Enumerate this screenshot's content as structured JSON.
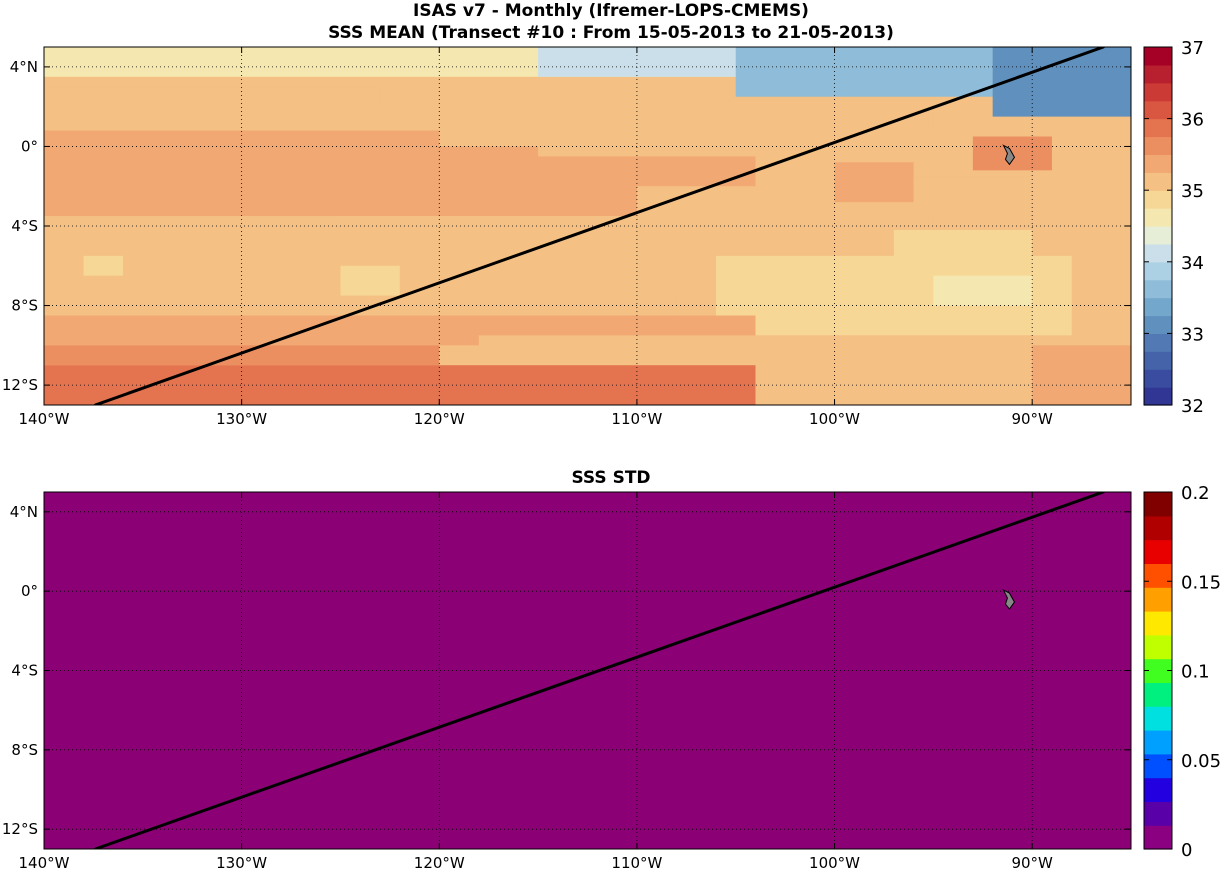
{
  "titles": {
    "line1": "ISAS v7 - Monthly (Ifremer-LOPS-CMEMS)",
    "line2": "SSS MEAN (Transect #10 : From 15-05-2013 to 21-05-2013)",
    "std": "SSS STD"
  },
  "axes": {
    "lon_ticks": [
      {
        "value": -140,
        "label": "140°W"
      },
      {
        "value": -130,
        "label": "130°W"
      },
      {
        "value": -120,
        "label": "120°W"
      },
      {
        "value": -110,
        "label": "110°W"
      },
      {
        "value": -100,
        "label": "100°W"
      },
      {
        "value": -90,
        "label": "90°W"
      }
    ],
    "lat_ticks": [
      {
        "value": 4,
        "label": "4°N"
      },
      {
        "value": 0,
        "label": "0°"
      },
      {
        "value": -4,
        "label": "4°S"
      },
      {
        "value": -8,
        "label": "8°S"
      },
      {
        "value": -12,
        "label": "12°S"
      }
    ],
    "lon_range": [
      -140,
      -85
    ],
    "lat_range": [
      -13,
      5
    ]
  },
  "transect": {
    "from": {
      "lon": -137.4,
      "lat": -13
    },
    "to": {
      "lon": -86.4,
      "lat": 5
    },
    "color": "#000000"
  },
  "island": {
    "name": "galapagos",
    "lon": -91.2,
    "lat": -0.5,
    "color": "#888888"
  },
  "mean_colorbar": {
    "min": 32,
    "max": 37,
    "tick_labels": [
      "37",
      "36",
      "35",
      "34",
      "33",
      "32"
    ],
    "colors": [
      "#313695",
      "#3a4c9f",
      "#4563a9",
      "#5279b3",
      "#6090bd",
      "#74a7cc",
      "#8fbcd9",
      "#acd0e4",
      "#cadfea",
      "#e6eed8",
      "#f5e7b0",
      "#f6d796",
      "#f4c083",
      "#f1a872",
      "#ec8f60",
      "#e4734f",
      "#d95741",
      "#cc3a36",
      "#b8202f",
      "#a50026"
    ]
  },
  "std_colorbar": {
    "min": 0,
    "max": 0.2,
    "tick_labels": [
      "0.2",
      "0.15",
      "0.1",
      "0.05",
      "0"
    ],
    "colors": [
      "#8a0080",
      "#5a00a8",
      "#2200e0",
      "#0050ff",
      "#00a0ff",
      "#00e0e0",
      "#00f080",
      "#40ff20",
      "#c0ff00",
      "#ffe800",
      "#ffa000",
      "#ff5000",
      "#e80000",
      "#b00000",
      "#800000"
    ]
  },
  "std_field": {
    "value": 0.0,
    "color": "#8b0075"
  },
  "mean_field_regions": [
    {
      "lon": [
        -140,
        -85
      ],
      "lat": [
        -13,
        5
      ],
      "sss": 35.0
    },
    {
      "lon": [
        -140,
        -85
      ],
      "lat": [
        3.5,
        5
      ],
      "sss": 34.6
    },
    {
      "lon": [
        -115,
        -85
      ],
      "lat": [
        3.5,
        5
      ],
      "sss": 34.0
    },
    {
      "lon": [
        -105,
        -85
      ],
      "lat": [
        2.5,
        5
      ],
      "sss": 33.6
    },
    {
      "lon": [
        -92,
        -85
      ],
      "lat": [
        1.5,
        5
      ],
      "sss": 33.2
    },
    {
      "lon": [
        -140,
        -123
      ],
      "lat": [
        1.5,
        3
      ],
      "sss": 35.0
    },
    {
      "lon": [
        -140,
        -95
      ],
      "lat": [
        0.8,
        2
      ],
      "sss": 35.2
    },
    {
      "lon": [
        -140,
        -115
      ],
      "lat": [
        -1,
        0
      ],
      "sss": 35.4
    },
    {
      "lon": [
        -140,
        -120
      ],
      "lat": [
        -2,
        0.8
      ],
      "sss": 35.4
    },
    {
      "lon": [
        -140,
        -110
      ],
      "lat": [
        -3.5,
        -0.5
      ],
      "sss": 35.4
    },
    {
      "lon": [
        -110,
        -104
      ],
      "lat": [
        -2,
        -0.5
      ],
      "sss": 35.4
    },
    {
      "lon": [
        -100,
        -96
      ],
      "lat": [
        -2.8,
        -0.8
      ],
      "sss": 35.4
    },
    {
      "lon": [
        -93,
        -89
      ],
      "lat": [
        -1.2,
        0.5
      ],
      "sss": 35.6
    },
    {
      "lon": [
        -96,
        -90
      ],
      "lat": [
        -3.2,
        -1.5
      ],
      "sss": 35.0
    },
    {
      "lon": [
        -125,
        -95
      ],
      "lat": [
        -4.5,
        -3.5
      ],
      "sss": 35.0
    },
    {
      "lon": [
        -97,
        -90
      ],
      "lat": [
        -7,
        -4.2
      ],
      "sss": 34.8
    },
    {
      "lon": [
        -106,
        -88
      ],
      "lat": [
        -9.5,
        -5.5
      ],
      "sss": 34.8
    },
    {
      "lon": [
        -95,
        -90
      ],
      "lat": [
        -8,
        -6.5
      ],
      "sss": 34.5
    },
    {
      "lon": [
        -138,
        -136
      ],
      "lat": [
        -6.5,
        -5.5
      ],
      "sss": 34.9
    },
    {
      "lon": [
        -125,
        -122
      ],
      "lat": [
        -7.5,
        -6
      ],
      "sss": 34.9
    },
    {
      "lon": [
        -140,
        -108
      ],
      "lat": [
        -8.5,
        -7.6
      ],
      "sss": 35.2
    },
    {
      "lon": [
        -140,
        -104
      ],
      "lat": [
        -10,
        -8.5
      ],
      "sss": 35.4
    },
    {
      "lon": [
        -118,
        -90
      ],
      "lat": [
        -10.5,
        -9.5
      ],
      "sss": 35.2
    },
    {
      "lon": [
        -100,
        -85
      ],
      "lat": [
        -13,
        -10
      ],
      "sss": 35.2
    },
    {
      "lon": [
        -140,
        -120
      ],
      "lat": [
        -11,
        -10
      ],
      "sss": 35.6
    },
    {
      "lon": [
        -140,
        -104
      ],
      "lat": [
        -13,
        -11
      ],
      "sss": 35.8
    },
    {
      "lon": [
        -140,
        -125
      ],
      "lat": [
        -13,
        -12
      ],
      "sss": 35.9
    },
    {
      "lon": [
        -90,
        -85
      ],
      "lat": [
        -13,
        -10
      ],
      "sss": 35.4
    }
  ]
}
